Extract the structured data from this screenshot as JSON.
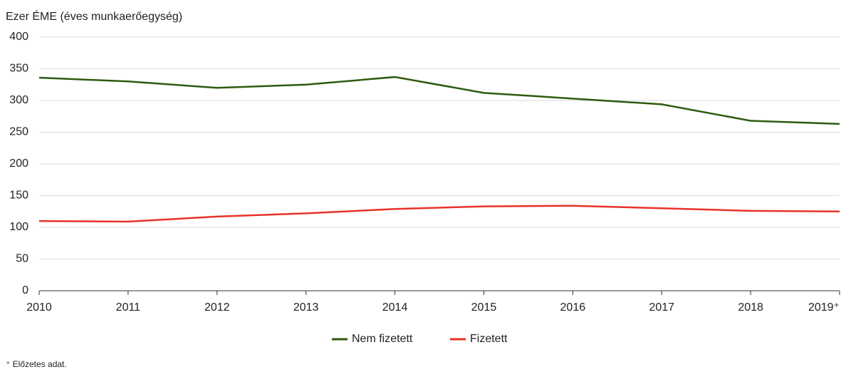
{
  "chart_data": {
    "type": "line",
    "y_axis_label": "Ezer ÉME (éves munkaerőegység)",
    "categories": [
      "2010",
      "2011",
      "2012",
      "2013",
      "2014",
      "2015",
      "2016",
      "2017",
      "2018",
      "2019⁺"
    ],
    "series": [
      {
        "name": "Nem fizetett",
        "color": "#2f5a0f",
        "values": [
          336,
          330,
          320,
          325,
          337,
          312,
          303,
          294,
          268,
          263
        ]
      },
      {
        "name": "Fizetett",
        "color": "#e8332a",
        "values": [
          110,
          109,
          117,
          122,
          129,
          133,
          134,
          130,
          126,
          125
        ]
      }
    ],
    "ylim": [
      0,
      400
    ],
    "yticks": [
      0,
      50,
      100,
      150,
      200,
      250,
      300,
      350,
      400
    ],
    "grid": true,
    "legend": "bottom",
    "footnote": "⁺ Előzetes adat."
  }
}
